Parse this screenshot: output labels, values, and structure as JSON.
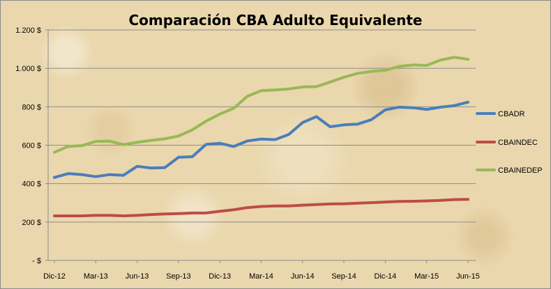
{
  "chart_data": {
    "type": "line",
    "title": "Comparación CBA Adulto Equivalente",
    "xlabel": "",
    "ylabel": "",
    "ylim": [
      0,
      1200
    ],
    "y_ticks": [
      0,
      200,
      400,
      600,
      800,
      1000,
      1200
    ],
    "y_tick_labels": [
      "- $",
      "200 $",
      "400 $",
      "600 $",
      "800 $",
      "1.000 $",
      "1.200 $"
    ],
    "x_tick_labels": [
      "Dic-12",
      "Mar-13",
      "Jun-13",
      "Sep-13",
      "Dic-13",
      "Mar-14",
      "Jun-14",
      "Sep-14",
      "Dic-14",
      "Mar-15",
      "Jun-15"
    ],
    "x_tick_every": 3,
    "grid": "horizontal",
    "legend_position": "right",
    "categories": [
      "Dic-12",
      "Ene-13",
      "Feb-13",
      "Mar-13",
      "Abr-13",
      "May-13",
      "Jun-13",
      "Jul-13",
      "Ago-13",
      "Sep-13",
      "Oct-13",
      "Nov-13",
      "Dic-13",
      "Ene-14",
      "Feb-14",
      "Mar-14",
      "Abr-14",
      "May-14",
      "Jun-14",
      "Jul-14",
      "Ago-14",
      "Sep-14",
      "Oct-14",
      "Nov-14",
      "Dic-14",
      "Ene-15",
      "Feb-15",
      "Mar-15",
      "Abr-15",
      "May-15",
      "Jun-15"
    ],
    "series": [
      {
        "name": "CBADR",
        "color": "#4a7ebb",
        "values": [
          432,
          452,
          447,
          436,
          447,
          443,
          490,
          481,
          483,
          537,
          540,
          604,
          610,
          593,
          622,
          632,
          629,
          656,
          718,
          749,
          696,
          706,
          710,
          733,
          784,
          798,
          795,
          786,
          798,
          806,
          824
        ]
      },
      {
        "name": "CBAINDEC",
        "color": "#be4b48",
        "values": [
          232,
          232,
          232,
          235,
          235,
          232,
          235,
          239,
          242,
          244,
          247,
          247,
          256,
          264,
          275,
          281,
          284,
          284,
          288,
          291,
          294,
          295,
          298,
          301,
          304,
          307,
          308,
          310,
          313,
          317,
          318
        ]
      },
      {
        "name": "CBAINEDEP",
        "color": "#98b954",
        "values": [
          563,
          594,
          598,
          620,
          621,
          603,
          615,
          625,
          633,
          648,
          680,
          725,
          762,
          792,
          855,
          884,
          888,
          893,
          903,
          905,
          929,
          954,
          974,
          984,
          990,
          1010,
          1018,
          1015,
          1043,
          1058,
          1047
        ]
      }
    ]
  }
}
